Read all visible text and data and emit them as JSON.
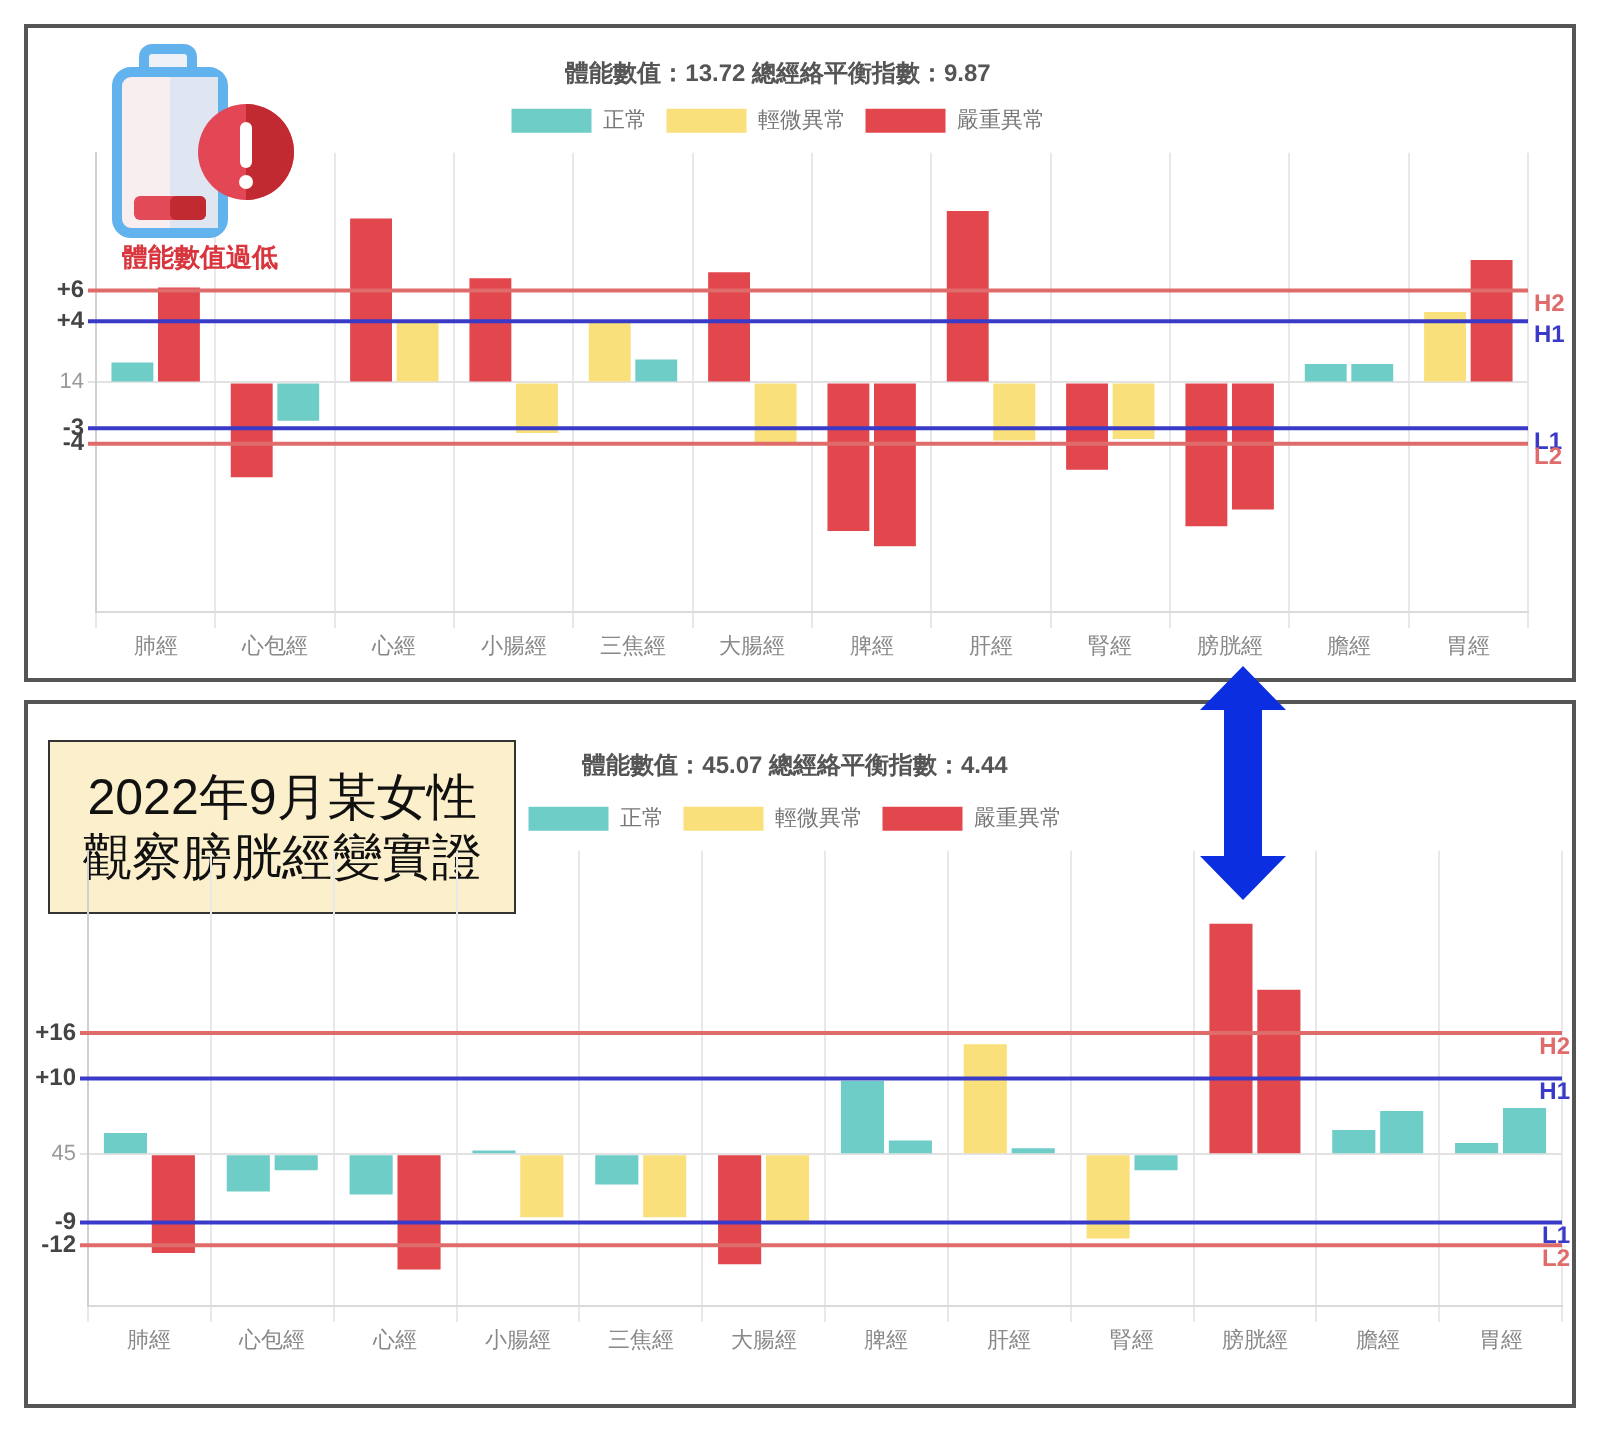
{
  "chart_data": [
    {
      "type": "bar",
      "title": "體能數值：13.72 總經絡平衡指數：9.87",
      "categories": [
        "肺經",
        "心包經",
        "心經",
        "小腸經",
        "三焦經",
        "大腸經",
        "脾經",
        "肝經",
        "腎經",
        "膀胱經",
        "膽經",
        "胃經"
      ],
      "series": [
        {
          "name": "正常",
          "color": "#6fcdc8",
          "values": [
            1.3,
            null,
            null,
            null,
            null,
            null,
            null,
            null,
            null,
            null,
            1.2,
            null
          ]
        },
        {
          "name": "輕微異常",
          "color": "#f9e07a",
          "values": [
            null,
            null,
            null,
            null,
            3.9,
            null,
            null,
            null,
            null,
            null,
            null,
            4.6
          ]
        },
        {
          "name": "嚴重異常",
          "color": "#e2474e",
          "values": [
            null,
            -6.2,
            10.7,
            6.8,
            null,
            7.2,
            -9.7,
            11.2,
            -5.7,
            -9.4,
            null,
            null
          ]
        },
        {
          "color": "#6fcdc8",
          "values": [
            null,
            -2.5,
            null,
            null,
            1.5,
            null,
            null,
            null,
            null,
            null,
            1.2,
            null
          ]
        },
        {
          "color": "#f9e07a",
          "values": [
            null,
            null,
            3.9,
            -3.3,
            null,
            -4.0,
            null,
            -3.8,
            -3.7,
            null,
            null,
            null
          ]
        },
        {
          "color": "#e2474e",
          "values": [
            6.2,
            null,
            null,
            null,
            null,
            null,
            -10.7,
            null,
            null,
            -8.3,
            null,
            8.0
          ]
        }
      ],
      "ylim": [
        -15,
        15
      ],
      "yticks": [
        -4,
        -3,
        {
          "value": 0,
          "label": null
        },
        {
          "value": 4,
          "label": "+4"
        },
        {
          "value": 6,
          "label": "+6"
        }
      ],
      "ref_lines": [
        {
          "axis": "y",
          "value": 6,
          "label": "H2",
          "color": "#e06b6b"
        },
        {
          "axis": "y",
          "value": 4,
          "label": "H1",
          "color": "#3a3ac8"
        },
        {
          "axis": "y",
          "value": -3,
          "label": "L1",
          "color": "#3a3ac8"
        },
        {
          "axis": "y",
          "value": -4,
          "label": "L2",
          "color": "#e06b6b"
        }
      ],
      "grid": true,
      "legend": "top",
      "annotations": [
        "體能數值過低",
        "14"
      ]
    },
    {
      "type": "bar",
      "title": "體能數值：45.07 總經絡平衡指數：4.44",
      "categories": [
        "肺經",
        "心包經",
        "心經",
        "小腸經",
        "三焦經",
        "大腸經",
        "脾經",
        "肝經",
        "腎經",
        "膀胱經",
        "膽經",
        "胃經"
      ],
      "series": [
        {
          "name": "正常",
          "color": "#6fcdc8",
          "values": [
            2.8,
            -4.9,
            -5.3,
            0.5,
            -4.0,
            null,
            9.7,
            null,
            null,
            null,
            3.2,
            1.5
          ]
        },
        {
          "name": "輕微異常",
          "color": "#f9e07a",
          "values": [
            null,
            null,
            null,
            null,
            null,
            null,
            null,
            14.5,
            -11.1,
            null,
            null,
            null
          ]
        },
        {
          "name": "嚴重異常",
          "color": "#e2474e",
          "values": [
            null,
            null,
            null,
            null,
            null,
            -14.5,
            null,
            null,
            null,
            30.4,
            null,
            null
          ]
        },
        {
          "color": "#6fcdc8",
          "values": [
            null,
            -2.1,
            null,
            null,
            null,
            null,
            1.8,
            0.8,
            -2.1,
            null,
            5.7,
            6.1
          ]
        },
        {
          "color": "#f9e07a",
          "values": [
            null,
            null,
            null,
            -8.3,
            -8.3,
            -9.1,
            null,
            null,
            null,
            null,
            null,
            null
          ]
        },
        {
          "color": "#e2474e",
          "values": [
            -13.0,
            null,
            -15.2,
            null,
            null,
            null,
            null,
            null,
            null,
            21.7,
            null,
            null
          ]
        }
      ],
      "ylim": [
        -20,
        40
      ],
      "yticks": [
        -12,
        -9,
        {
          "value": 0,
          "label": null
        },
        {
          "value": 10,
          "label": "+10"
        },
        {
          "value": 16,
          "label": "+16"
        }
      ],
      "ref_lines": [
        {
          "axis": "y",
          "value": 16,
          "label": "H2",
          "color": "#e06b6b"
        },
        {
          "axis": "y",
          "value": 10,
          "label": "H1",
          "color": "#3a3ac8"
        },
        {
          "axis": "y",
          "value": -9,
          "label": "L1",
          "color": "#3a3ac8"
        },
        {
          "axis": "y",
          "value": -12,
          "label": "L2",
          "color": "#e06b6b"
        }
      ],
      "grid": true,
      "legend": "top",
      "annotations": [
        "2022年9月某女性",
        "觀察膀胱經變實證",
        "45"
      ]
    }
  ]
}
